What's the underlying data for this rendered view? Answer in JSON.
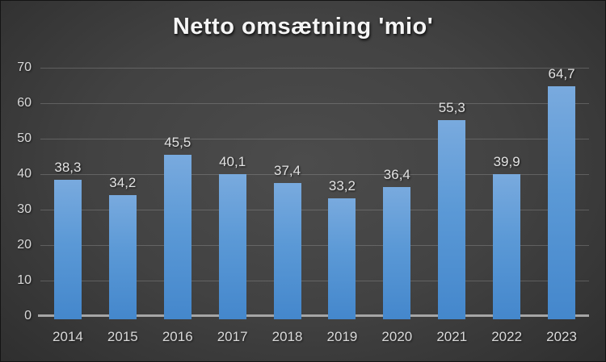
{
  "title": "Netto omsætning 'mio'",
  "colors": {
    "background_center": "#4c4c4c",
    "background_edge": "#1f1f1f",
    "bar_top": "#79aade",
    "bar_bottom": "#4487cc",
    "gridline": "#707070",
    "axis_line": "#a6a6a6",
    "tick_label": "#d9d9d9",
    "title_text": "#f5f5f5"
  },
  "chart_data": {
    "type": "bar",
    "title": "Netto omsætning 'mio'",
    "categories": [
      "2014",
      "2015",
      "2016",
      "2017",
      "2018",
      "2019",
      "2020",
      "2021",
      "2022",
      "2023"
    ],
    "values": [
      38.3,
      34.2,
      45.5,
      40.1,
      37.4,
      33.2,
      36.4,
      55.3,
      39.9,
      64.7
    ],
    "value_labels": [
      "38,3",
      "34,2",
      "45,5",
      "40,1",
      "37,4",
      "33,2",
      "36,4",
      "55,3",
      "39,9",
      "64,7"
    ],
    "xlabel": "",
    "ylabel": "",
    "ylim": [
      0,
      70
    ],
    "ytick_step": 10,
    "ytick_labels": [
      "70",
      "60",
      "50",
      "40",
      "30",
      "20",
      "10",
      "0"
    ],
    "grid": true,
    "legend": false,
    "data_labels": true
  }
}
